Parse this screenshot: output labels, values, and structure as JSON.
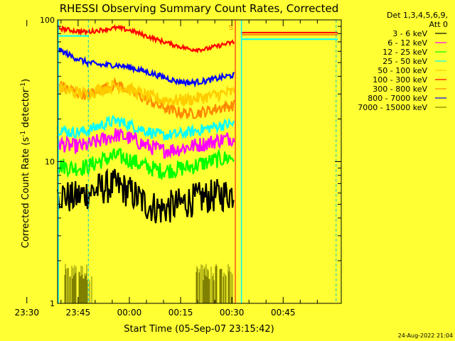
{
  "chart_data": {
    "type": "line",
    "title": "RHESSI Observing Summary Count Rates, Corrected",
    "xlabel": "Start Time (05-Sep-07 23:15:42)",
    "ylabel_main": "Corrected Count Rate (s",
    "ylabel_sup1": "-1",
    "ylabel_mid": " detector",
    "ylabel_sup2": "-1",
    "ylabel_end": ")",
    "y_scale": "log",
    "ylim": [
      1,
      100
    ],
    "y_ticks": [
      {
        "value": 1,
        "label": "1"
      },
      {
        "value": 10,
        "label": "10"
      },
      {
        "value": 100,
        "label": "100"
      }
    ],
    "xlim_minutes": [
      -21,
      62
    ],
    "x_ticks": [
      {
        "value": -30,
        "label": "23:30"
      },
      {
        "value": -15,
        "label": "23:45"
      },
      {
        "value": 0,
        "label": "00:00"
      },
      {
        "value": 15,
        "label": "00:15"
      },
      {
        "value": 30,
        "label": "00:30"
      },
      {
        "value": 45,
        "label": "00:45"
      }
    ],
    "detector_header": "Det 1,3,4,5,6,9,",
    "attenuator": "Att 0",
    "saa_marker": "S",
    "timestamp": "24-Aug-2022 21:04",
    "series": [
      {
        "name": "3 - 6 keV",
        "color": "#000000",
        "levels": [
          6.0,
          5.5,
          6.0,
          6.5,
          6.8,
          6.0,
          5.0,
          4.6,
          4.9,
          5.3,
          5.6,
          5.8,
          6.0
        ]
      },
      {
        "name": "6 - 12 keV",
        "color": "#ff00ff",
        "levels": [
          13.5,
          12.8,
          13.0,
          14.2,
          15.5,
          14.5,
          13.0,
          12.0,
          12.2,
          12.8,
          13.4,
          14.2,
          14.8
        ]
      },
      {
        "name": "12 - 25 keV",
        "color": "#00ff00",
        "levels": [
          9.5,
          9.0,
          9.2,
          10.2,
          11.0,
          10.2,
          9.2,
          8.6,
          8.8,
          9.2,
          9.8,
          10.4,
          10.8
        ]
      },
      {
        "name": "25 - 50 keV",
        "color": "#00ffff",
        "levels": [
          17.0,
          16.0,
          16.5,
          18.2,
          19.5,
          18.0,
          16.5,
          15.3,
          15.5,
          16.2,
          17.0,
          18.0,
          18.5
        ]
      },
      {
        "name": "50 - 100 keV",
        "color": "#ffcc00",
        "levels": [
          33.0,
          31.0,
          30.0,
          32.5,
          34.5,
          32.0,
          29.0,
          27.5,
          27.0,
          27.5,
          28.5,
          30.0,
          31.0
        ]
      },
      {
        "name": "100 - 300 keV",
        "color": "#ff0000",
        "levels": [
          88,
          84,
          82,
          85,
          88,
          84,
          77,
          71,
          66,
          62,
          62,
          66,
          70
        ]
      },
      {
        "name": "300 - 800 keV",
        "color": "#ff8800",
        "levels": [
          35.0,
          31.5,
          29.5,
          32.5,
          35.0,
          31.5,
          27.5,
          24.5,
          22.5,
          21.8,
          22.5,
          24.0,
          25.0
        ]
      },
      {
        "name": "800 - 7000 keV",
        "color": "#0000ff",
        "levels": [
          62,
          55,
          50,
          48,
          48,
          46,
          43,
          40,
          37,
          36,
          37,
          39,
          41
        ]
      },
      {
        "name": "7000 - 15000 keV",
        "color": "#808000",
        "levels": [
          1.0,
          1.0,
          1.0,
          1.0,
          1.0,
          1.0,
          1.0,
          1.0,
          1.0,
          1.0,
          1.0,
          1.0,
          1.0
        ]
      }
    ]
  }
}
